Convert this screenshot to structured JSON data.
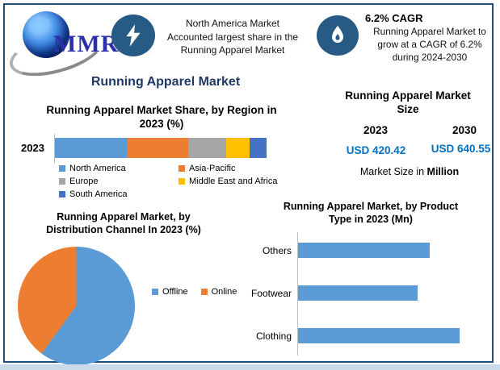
{
  "page": {
    "title": "Running Apparel Market"
  },
  "logo": {
    "text": "MMR"
  },
  "highlight_left": {
    "lines": [
      "North America Market",
      "Accounted largest share in the",
      "Running Apparel Market"
    ]
  },
  "highlight_right": {
    "heading": "6.2% CAGR",
    "lines": [
      "Running Apparel Market to",
      "grow at a CAGR of 6.2%",
      "during 2024-2030"
    ]
  },
  "market_size": {
    "title": "Running Apparel Market Size",
    "years": [
      "2023",
      "2030"
    ],
    "values": [
      "USD 420.42",
      "USD 640.55"
    ],
    "footnote_prefix": "Market Size in ",
    "footnote_bold": "Million"
  },
  "colors": {
    "frame_border": "#1F4E79",
    "main_title": "#1F3864",
    "icon_circle": "#275B85",
    "value_blue": "#0070C0",
    "bottom_strip": "#CBDAEA"
  },
  "chart_data": [
    {
      "id": "region_share",
      "type": "bar",
      "subtype": "stacked-horizontal",
      "title": "Running Apparel Market Share, by Region in 2023 (%)",
      "categories": [
        "2023"
      ],
      "series": [
        {
          "name": "North America",
          "color": "#5B9BD5",
          "values": [
            34
          ]
        },
        {
          "name": "Asia-Pacific",
          "color": "#ED7D31",
          "values": [
            29
          ]
        },
        {
          "name": "Europe",
          "color": "#A5A5A5",
          "values": [
            18
          ]
        },
        {
          "name": "Middle East and Africa",
          "color": "#FFC000",
          "values": [
            11
          ]
        },
        {
          "name": "South America",
          "color": "#4472C4",
          "values": [
            8
          ]
        }
      ],
      "xlim": [
        0,
        100
      ],
      "legend_position": "bottom",
      "grid": false
    },
    {
      "id": "distribution_channel",
      "type": "pie",
      "title": "Running Apparel Market, by Distribution Channel In 2023 (%)",
      "labels": [
        "Offline",
        "Online"
      ],
      "values": [
        60,
        40
      ],
      "colors": [
        "#5B9BD5",
        "#ED7D31"
      ],
      "legend_position": "right"
    },
    {
      "id": "product_type",
      "type": "bar",
      "subtype": "horizontal",
      "title": "Running Apparel Market, by Product Type in 2023 (Mn)",
      "categories": [
        "Others",
        "Footwear",
        "Clothing"
      ],
      "values": [
        163,
        148,
        200
      ],
      "bar_color": "#5B9BD5",
      "xlim": [
        0,
        245
      ],
      "grid": false,
      "note": "values estimated from bar lengths; axis has no tick labels"
    }
  ]
}
